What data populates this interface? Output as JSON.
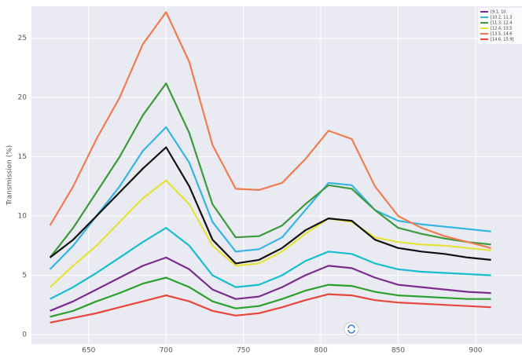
{
  "chart_data": {
    "type": "line",
    "ylabel": "Transmission (%)",
    "x": [
      625,
      640,
      655,
      670,
      685,
      700,
      715,
      730,
      745,
      760,
      775,
      790,
      805,
      820,
      835,
      850,
      865,
      880,
      895,
      910
    ],
    "xlim": [
      613,
      930
    ],
    "xticks": [
      650,
      700,
      750,
      800,
      850,
      900
    ],
    "ylim": [
      -0.8,
      27.7
    ],
    "yticks": [
      0,
      5,
      10,
      15,
      20,
      25
    ],
    "grid": true,
    "legend": "upper right",
    "series": [
      {
        "name": "[9.1, 10.",
        "color": "#7b2d8e",
        "values": [
          2,
          2.8,
          3.8,
          4.8,
          5.8,
          6.5,
          5.5,
          3.8,
          3,
          3.2,
          4,
          5,
          5.8,
          5.6,
          4.8,
          4.2,
          4,
          3.8,
          3.6,
          3.5
        ]
      },
      {
        "name": "[10.2, 11.3",
        "color": "#35b5e5",
        "values": [
          5.5,
          7.5,
          10,
          12.5,
          15.5,
          17.5,
          14.5,
          9.5,
          7,
          7.2,
          8.2,
          10.5,
          12.8,
          12.6,
          10.5,
          9.6,
          9.3,
          9.1,
          8.9,
          8.7
        ]
      },
      {
        "name": "[11.3, 12.4",
        "color": "#3c9a3c",
        "values": [
          6.5,
          9,
          12,
          15,
          18.5,
          21.2,
          17,
          11,
          8.2,
          8.3,
          9.2,
          11,
          12.6,
          12.3,
          10.5,
          9,
          8.5,
          8.1,
          7.8,
          7.6
        ]
      },
      {
        "name": "[12.4, 13.5",
        "color": "#e3e33a",
        "values": [
          4,
          5.8,
          7.5,
          9.5,
          11.5,
          13,
          11,
          7.5,
          5.8,
          6,
          7,
          8.5,
          9.8,
          9.5,
          8.2,
          7.8,
          7.6,
          7.5,
          7.3,
          7.1
        ]
      },
      {
        "name": "[13.5, 14.6",
        "color": "#f07c50",
        "values": [
          9.2,
          12.5,
          16.5,
          20,
          24.5,
          27.2,
          23,
          16,
          12.3,
          12.2,
          12.8,
          14.8,
          17.2,
          16.5,
          12.5,
          10,
          9,
          8.3,
          7.8,
          7.3
        ]
      },
      {
        "name": "[14.6, 15.9]",
        "color": "#e8463c",
        "values": [
          1,
          1.4,
          1.8,
          2.3,
          2.8,
          3.3,
          2.8,
          2,
          1.6,
          1.8,
          2.3,
          2.9,
          3.4,
          3.3,
          2.9,
          2.7,
          2.6,
          2.5,
          2.4,
          2.3
        ]
      },
      {
        "color": "#111111",
        "values": [
          6.5,
          8,
          10,
          12,
          14,
          15.8,
          12.5,
          8,
          6,
          6.3,
          7.3,
          8.8,
          9.8,
          9.6,
          8,
          7.3,
          7,
          6.8,
          6.5,
          6.3
        ]
      },
      {
        "color": "#17becf",
        "values": [
          3,
          4,
          5.2,
          6.5,
          7.8,
          9,
          7.5,
          5,
          4,
          4.2,
          5,
          6.2,
          7,
          6.8,
          6,
          5.5,
          5.3,
          5.2,
          5.1,
          5
        ]
      },
      {
        "color": "#2ca02c",
        "values": [
          1.5,
          2,
          2.8,
          3.5,
          4.3,
          4.8,
          4,
          2.8,
          2.2,
          2.4,
          3,
          3.7,
          4.2,
          4.1,
          3.6,
          3.3,
          3.2,
          3.1,
          3,
          3
        ]
      }
    ]
  }
}
